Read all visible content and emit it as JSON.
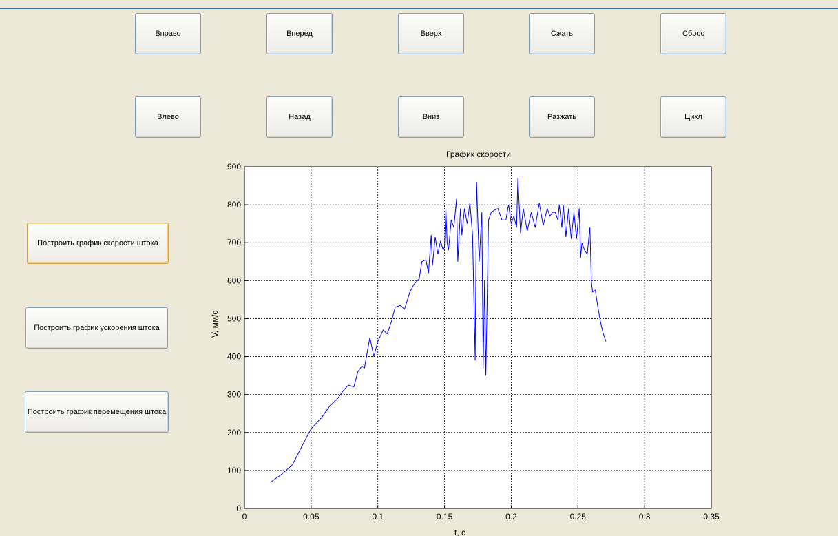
{
  "buttons": {
    "right": "Вправо",
    "forward": "Вперед",
    "up": "Вверх",
    "squeeze": "Сжать",
    "reset": "Сброс",
    "left": "Влево",
    "back": "Назад",
    "down": "Вниз",
    "release": "Разжать",
    "cycle": "Цикл",
    "plot_velocity": "Построить график скорости штока",
    "plot_acceleration": "Построить график ускорения штока",
    "plot_displacement": "Построить график перемещения штока"
  },
  "chart_data": {
    "type": "line",
    "title": "График скорости",
    "xlabel": "t, c",
    "ylabel": "V, мм/с",
    "xlim": [
      0,
      0.35
    ],
    "ylim": [
      0,
      900
    ],
    "xticks": [
      0,
      0.05,
      0.1,
      0.15,
      0.2,
      0.25,
      0.3,
      0.35
    ],
    "yticks": [
      0,
      100,
      200,
      300,
      400,
      500,
      600,
      700,
      800,
      900
    ],
    "xtick_labels": [
      "0",
      "0.05",
      "0.1",
      "0.15",
      "0.2",
      "0.25",
      "0.3",
      "0.35"
    ],
    "ytick_labels": [
      "0",
      "100",
      "200",
      "300",
      "400",
      "500",
      "600",
      "700",
      "800",
      "900"
    ],
    "grid": true,
    "line_color": "#0000ff",
    "series": [
      {
        "x": [
          0.02,
          0.028,
          0.036,
          0.044,
          0.05,
          0.058,
          0.064,
          0.07,
          0.074,
          0.078,
          0.082,
          0.085,
          0.088,
          0.09,
          0.092,
          0.094,
          0.097,
          0.1,
          0.104,
          0.107,
          0.11,
          0.113,
          0.117,
          0.12,
          0.124,
          0.127,
          0.131,
          0.133,
          0.136,
          0.138,
          0.14,
          0.141,
          0.143,
          0.145,
          0.147,
          0.149,
          0.15,
          0.151,
          0.152,
          0.153,
          0.155,
          0.157,
          0.159,
          0.16,
          0.162,
          0.163,
          0.165,
          0.167,
          0.169,
          0.171,
          0.173,
          0.174,
          0.176,
          0.178,
          0.179,
          0.18,
          0.181,
          0.183,
          0.185,
          0.187,
          0.19,
          0.193,
          0.196,
          0.198,
          0.2,
          0.202,
          0.204,
          0.205,
          0.207,
          0.209,
          0.212,
          0.215,
          0.218,
          0.221,
          0.224,
          0.227,
          0.229,
          0.231,
          0.233,
          0.235,
          0.236,
          0.238,
          0.239,
          0.241,
          0.243,
          0.245,
          0.247,
          0.249,
          0.251,
          0.252,
          0.253,
          0.255,
          0.257,
          0.259,
          0.26,
          0.261,
          0.263,
          0.265,
          0.267,
          0.269,
          0.271
        ],
        "y": [
          70,
          90,
          115,
          170,
          210,
          240,
          270,
          290,
          310,
          325,
          320,
          360,
          375,
          370,
          410,
          450,
          400,
          440,
          470,
          460,
          490,
          530,
          535,
          525,
          570,
          590,
          605,
          650,
          655,
          620,
          720,
          640,
          715,
          670,
          705,
          680,
          690,
          790,
          700,
          680,
          760,
          740,
          815,
          650,
          790,
          720,
          790,
          750,
          805,
          720,
          390,
          860,
          650,
          780,
          370,
          600,
          350,
          760,
          780,
          785,
          790,
          760,
          760,
          800,
          750,
          770,
          740,
          870,
          725,
          790,
          730,
          780,
          740,
          805,
          745,
          790,
          770,
          780,
          780,
          760,
          800,
          740,
          800,
          715,
          790,
          710,
          780,
          710,
          790,
          660,
          700,
          680,
          670,
          740,
          600,
          570,
          575,
          530,
          490,
          460,
          440
        ]
      }
    ]
  }
}
